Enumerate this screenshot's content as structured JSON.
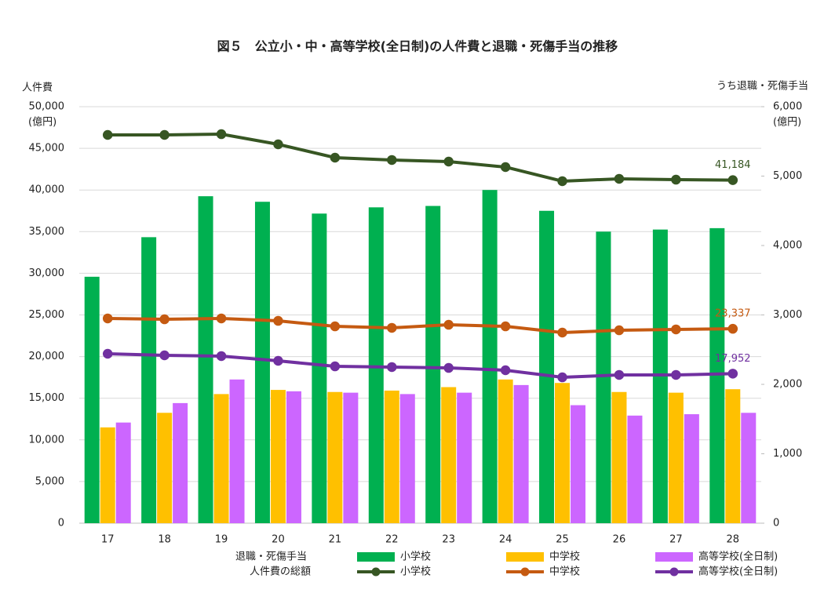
{
  "chart_data": {
    "type": "bar-line",
    "title": "図５　公立小・中・高等学校(全日制)の人件費と退職・死傷手当の推移",
    "y_label": "人件費",
    "y_unit": "(億円)",
    "y2_label": "うち退職・死傷手当",
    "y2_unit": "(億円)",
    "legend_titles": [
      "退職・死傷手当",
      "人件費の総額"
    ],
    "categories": [
      "17",
      "18",
      "19",
      "20",
      "21",
      "22",
      "23",
      "24",
      "25",
      "26",
      "27",
      "28"
    ],
    "ylim": [
      0,
      50000
    ],
    "yticks": [
      0,
      {
        "value": 5000,
        "label": "5,000"
      },
      {
        "value": 10000,
        "label": "10,000"
      },
      {
        "value": 15000,
        "label": "15,000"
      },
      {
        "value": 20000,
        "label": "20,000"
      },
      {
        "value": 25000,
        "label": "25,000"
      },
      {
        "value": 30000,
        "label": "30,000"
      },
      {
        "value": 35000,
        "label": "35,000"
      },
      {
        "value": 40000,
        "label": "40,000"
      },
      {
        "value": 45000,
        "label": "45,000"
      },
      {
        "value": 50000,
        "label": "50,000"
      }
    ],
    "y2lim": [
      0,
      6000
    ],
    "y2ticks": [
      0,
      {
        "value": 1000,
        "label": "1,000"
      },
      {
        "value": 2000,
        "label": "2,000"
      },
      {
        "value": 3000,
        "label": "3,000"
      },
      {
        "value": 4000,
        "label": "4,000"
      },
      {
        "value": 5000,
        "label": "5,000"
      },
      {
        "value": 6000,
        "label": "6,000"
      }
    ],
    "grid": true,
    "series": [
      {
        "name": "小学校",
        "type": "bar",
        "axis": "y2",
        "color": "#00b050",
        "values": [
          3550,
          4120,
          4710,
          4630,
          4460,
          4550,
          4570,
          4800,
          4500,
          4200,
          4230,
          4250
        ]
      },
      {
        "name": "中学校",
        "type": "bar",
        "axis": "y2",
        "color": "#ffc000",
        "values": [
          1380,
          1590,
          1860,
          1920,
          1890,
          1910,
          1960,
          2070,
          2020,
          1890,
          1880,
          1930
        ]
      },
      {
        "name": "高等学校(全日制)",
        "type": "bar",
        "axis": "y2",
        "color": "#cc66ff",
        "values": [
          1450,
          1730,
          2070,
          1900,
          1880,
          1860,
          1880,
          1990,
          1700,
          1550,
          1570,
          1590
        ]
      },
      {
        "name": "小学校",
        "type": "line",
        "color": "#375623",
        "values": [
          46610,
          46610,
          46700,
          45480,
          43880,
          43600,
          43410,
          42750,
          41060,
          41340,
          41240,
          41184
        ],
        "value_labels": [
          null,
          null,
          null,
          null,
          null,
          null,
          null,
          null,
          null,
          null,
          null,
          "41,184"
        ]
      },
      {
        "name": "中学校",
        "type": "line",
        "color": "#c55a11",
        "values": [
          24580,
          24480,
          24580,
          24290,
          23630,
          23450,
          23820,
          23630,
          22880,
          23160,
          23260,
          23337
        ],
        "value_labels": [
          null,
          null,
          null,
          null,
          null,
          null,
          null,
          null,
          null,
          null,
          null,
          "23,337"
        ]
      },
      {
        "name": "高等学校(全日制)",
        "type": "line",
        "color": "#7030a0",
        "values": [
          20340,
          20150,
          20060,
          19490,
          18830,
          18740,
          18640,
          18360,
          17510,
          17800,
          17800,
          17952
        ],
        "value_labels": [
          null,
          null,
          null,
          null,
          null,
          null,
          null,
          null,
          null,
          null,
          null,
          "17,952"
        ]
      }
    ]
  }
}
